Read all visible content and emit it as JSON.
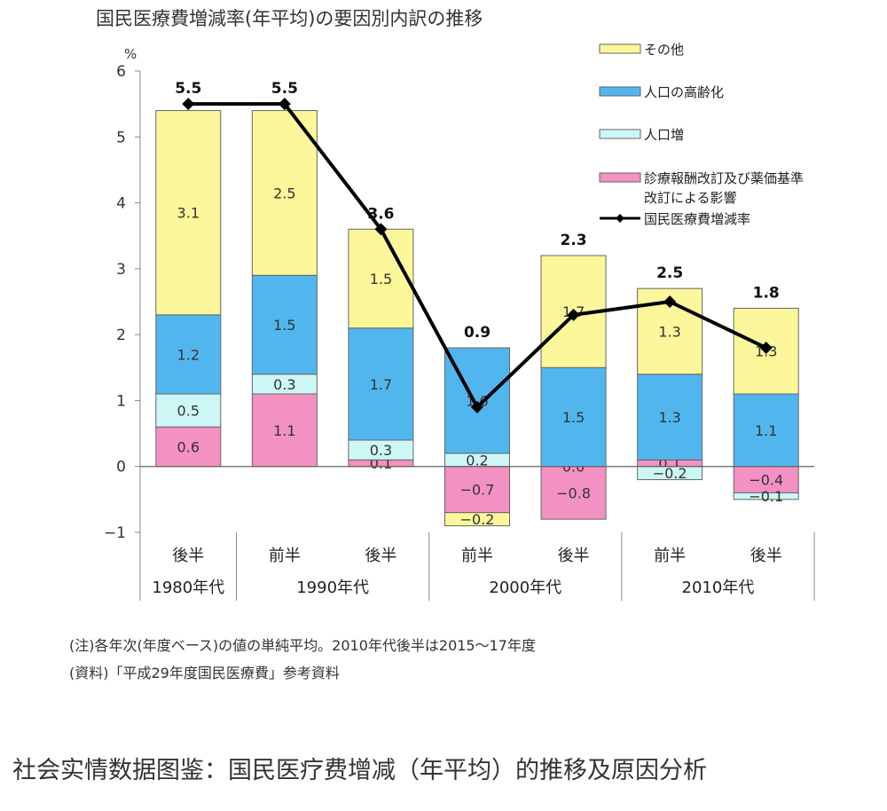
{
  "chart_data": {
    "type": "bar",
    "title": "国民医療費増減率(年平均)の要因別内訳の推移",
    "unit_label": "%",
    "ylim": [
      -1,
      6
    ],
    "yticks": [
      6,
      5,
      4,
      3,
      2,
      1,
      0,
      -1
    ],
    "ytick_labels": [
      "6",
      "5",
      "4",
      "3",
      "2",
      "1",
      "0",
      "−1"
    ],
    "categories": [
      "後半",
      "前半",
      "後半",
      "前半",
      "後半",
      "前半",
      "後半"
    ],
    "decades": [
      {
        "label": "1980年代",
        "span": 1
      },
      {
        "label": "1990年代",
        "span": 2
      },
      {
        "label": "2000年代",
        "span": 2
      },
      {
        "label": "2010年代",
        "span": 2
      }
    ],
    "series": [
      {
        "name": "診療報酬改訂及び薬価基準改訂による影響",
        "color": "#f291c2",
        "values": [
          0.6,
          1.1,
          0.1,
          -0.7,
          -0.8,
          0.1,
          -0.4
        ],
        "labels": [
          "0.6",
          "1.1",
          "0.1",
          "−0.7",
          "−0.8",
          "0.1",
          "−0.4"
        ]
      },
      {
        "name": "人口増",
        "color": "#ccf7f5",
        "values": [
          0.5,
          0.3,
          0.3,
          0.2,
          0.0,
          -0.2,
          -0.1
        ],
        "labels": [
          "0.5",
          "0.3",
          "0.3",
          "0.2",
          "0.0",
          "−0.2",
          "−0.1"
        ]
      },
      {
        "name": "人口の高齢化",
        "color": "#52b6ee",
        "values": [
          1.2,
          1.5,
          1.7,
          1.6,
          1.5,
          1.3,
          1.1
        ],
        "labels": [
          "1.2",
          "1.5",
          "1.7",
          "1.6",
          "1.5",
          "1.3",
          "1.1"
        ]
      },
      {
        "name": "その他",
        "color": "#fbf79a",
        "values": [
          3.1,
          2.5,
          1.5,
          -0.2,
          1.7,
          1.3,
          1.3
        ],
        "labels": [
          "3.1",
          "2.5",
          "1.5",
          "−0.2",
          "1.7",
          "1.3",
          "1.3"
        ]
      }
    ],
    "line": {
      "name": "国民医療費増減率",
      "color": "#000000",
      "values": [
        5.5,
        5.5,
        3.6,
        0.9,
        2.3,
        2.5,
        1.8
      ],
      "labels": [
        "5.5",
        "5.5",
        "3.6",
        "0.9",
        "2.3",
        "2.5",
        "1.8"
      ]
    },
    "legend": {
      "placement": "top-right",
      "items": [
        {
          "label": "その他",
          "color": "#fbf79a"
        },
        {
          "label": "人口の高齢化",
          "color": "#52b6ee"
        },
        {
          "label": "人口増",
          "color": "#ccf7f5"
        },
        {
          "label": "診療報酬改訂及び薬価基準",
          "label2": "改訂による影響",
          "color": "#f291c2"
        },
        {
          "label": "国民医療費増減率",
          "line": true
        }
      ]
    },
    "notes": [
      "(注)各年次(年度ベース)の値の単純平均。2010年代後半は2015～17年度",
      "(資料)「平成29年度国民医療費」参考資料"
    ],
    "grid": false
  },
  "caption": "社会实情数据图鉴：国民医疗费增减（年平均）的推移及原因分析"
}
